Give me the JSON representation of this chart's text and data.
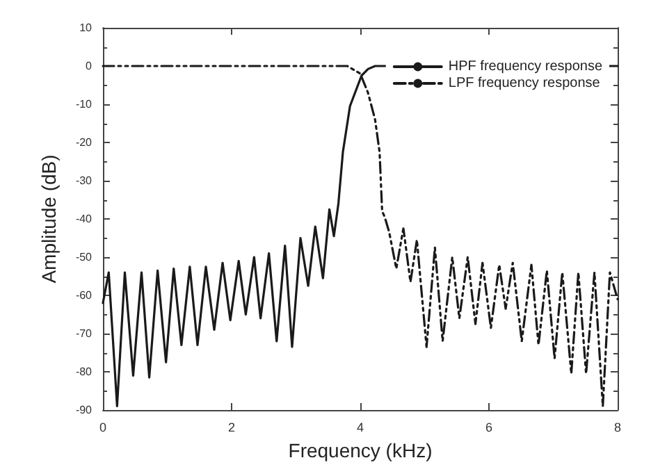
{
  "chart_data": {
    "type": "line",
    "xlabel": "Frequency (kHz)",
    "ylabel": "Amplitude (dB)",
    "xlim": [
      0,
      8
    ],
    "xticks": [
      0,
      2,
      4,
      6,
      8
    ],
    "ylim": [
      -90,
      10
    ],
    "yticks": [
      -90,
      -80,
      -70,
      -60,
      -50,
      -40,
      -30,
      -20,
      -10,
      0,
      10
    ],
    "grid": false,
    "legend": "top right",
    "marker": "none",
    "series": [
      {
        "name": "HPF frequency response",
        "color": "#1a1a1a",
        "line_style": "solid",
        "x": [
          0,
          0.09,
          0.22,
          0.34,
          0.47,
          0.6,
          0.72,
          0.85,
          0.98,
          1.1,
          1.22,
          1.35,
          1.47,
          1.6,
          1.73,
          1.86,
          1.98,
          2.11,
          2.22,
          2.35,
          2.45,
          2.58,
          2.7,
          2.83,
          2.94,
          3.07,
          3.19,
          3.3,
          3.42,
          3.52,
          3.59,
          3.66,
          3.73,
          3.84,
          4.02,
          4.12,
          4.23,
          8
        ],
        "values": [
          -62,
          -54,
          -89,
          -54,
          -81,
          -54,
          -81.5,
          -53.5,
          -77.5,
          -53,
          -73,
          -52.5,
          -73,
          -52.5,
          -69,
          -51.5,
          -66.5,
          -51,
          -65,
          -50,
          -66,
          -49,
          -72,
          -47,
          -73.5,
          -45,
          -57.5,
          -42,
          -55.5,
          -37.5,
          -44.5,
          -36,
          -22.5,
          -10.5,
          -2.5,
          -0.8,
          0,
          0
        ]
      },
      {
        "name": "LPF frequency response",
        "color": "#1a1a1a",
        "line_style": "dashed",
        "x": [
          0,
          3.8,
          4.0,
          4.12,
          4.23,
          4.3,
          4.34,
          4.38,
          4.45,
          4.56,
          4.67,
          4.78,
          4.88,
          5.03,
          5.16,
          5.28,
          5.43,
          5.54,
          5.67,
          5.79,
          5.9,
          6.03,
          6.16,
          6.26,
          6.37,
          6.51,
          6.66,
          6.77,
          6.9,
          7.02,
          7.14,
          7.28,
          7.39,
          7.51,
          7.64,
          7.77,
          7.88,
          8
        ],
        "values": [
          0,
          0,
          -2,
          -7,
          -14,
          -22.5,
          -38,
          -39.5,
          -43.5,
          -53,
          -42.5,
          -56.5,
          -45.5,
          -73.5,
          -47.5,
          -72,
          -50,
          -66,
          -50,
          -67.5,
          -51.5,
          -68.5,
          -52,
          -63.5,
          -51.5,
          -72,
          -52,
          -73,
          -53.5,
          -76.5,
          -54,
          -80.5,
          -54,
          -80.5,
          -54,
          -89,
          -54,
          -61
        ]
      }
    ]
  }
}
